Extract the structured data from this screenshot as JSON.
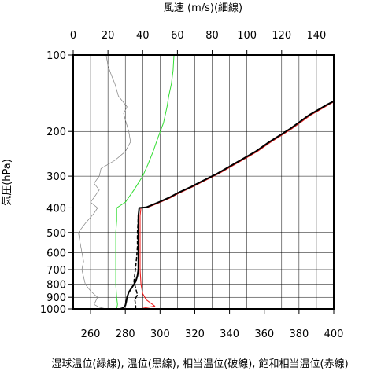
{
  "chart_data": {
    "type": "line",
    "title_top": "風速 (m/s)(細線)",
    "ylabel": "気圧(hPa)",
    "xlabel": "湿球温位(緑線), 温位(黒線), 相当温位(破線), 飽和相当温位(赤線)",
    "y_scale": "log",
    "y_reversed": true,
    "ylim": [
      1000,
      100
    ],
    "y_ticks": [
      100,
      200,
      300,
      400,
      500,
      600,
      700,
      800,
      900,
      1000
    ],
    "x_bottom_lim": [
      250,
      400
    ],
    "x_bottom_ticks": [
      260,
      280,
      300,
      320,
      340,
      360,
      380,
      400
    ],
    "x_top_lim": [
      0,
      150
    ],
    "x_top_ticks": [
      0,
      20,
      40,
      60,
      80,
      100,
      120,
      140
    ],
    "grid": true,
    "colors": {
      "wind": "#808080",
      "wet_bulb": "#33dd33",
      "theta": "#000000",
      "theta_e": "#000000",
      "theta_es": "#ee2222"
    },
    "series": [
      {
        "key": "wind",
        "axis": "top",
        "style": "thin",
        "points": [
          [
            19,
            1000
          ],
          [
            15,
            985
          ],
          [
            12,
            960
          ],
          [
            13,
            930
          ],
          [
            14,
            900
          ],
          [
            10,
            850
          ],
          [
            7,
            800
          ],
          [
            5,
            700
          ],
          [
            6,
            650
          ],
          [
            4,
            550
          ],
          [
            3,
            500
          ],
          [
            7,
            460
          ],
          [
            12,
            420
          ],
          [
            14,
            400
          ],
          [
            10,
            380
          ],
          [
            15,
            340
          ],
          [
            12,
            320
          ],
          [
            15,
            300
          ],
          [
            16,
            280
          ],
          [
            24,
            260
          ],
          [
            30,
            240
          ],
          [
            33,
            220
          ],
          [
            32,
            200
          ],
          [
            30,
            180
          ],
          [
            29,
            170
          ],
          [
            31,
            160
          ],
          [
            26,
            145
          ],
          [
            24,
            130
          ],
          [
            22,
            120
          ],
          [
            20,
            110
          ],
          [
            19,
            100
          ]
        ]
      },
      {
        "key": "wet_bulb",
        "axis": "bottom",
        "points": [
          [
            275,
            1000
          ],
          [
            275.5,
            960
          ],
          [
            275,
            900
          ],
          [
            274.5,
            800
          ],
          [
            274.5,
            700
          ],
          [
            274.5,
            600
          ],
          [
            274.5,
            500
          ],
          [
            275,
            450
          ],
          [
            275,
            400
          ],
          [
            280,
            380
          ],
          [
            285,
            340
          ],
          [
            290,
            300
          ],
          [
            293,
            270
          ],
          [
            296,
            240
          ],
          [
            299,
            210
          ],
          [
            302,
            185
          ],
          [
            304,
            160
          ],
          [
            305,
            145
          ],
          [
            306.5,
            130
          ],
          [
            307.5,
            115
          ],
          [
            308,
            100
          ]
        ]
      },
      {
        "key": "theta",
        "axis": "bottom",
        "points": [
          [
            277,
            1000
          ],
          [
            279,
            990
          ],
          [
            280,
            970
          ],
          [
            280.5,
            940
          ],
          [
            281,
            900
          ],
          [
            282,
            860
          ],
          [
            284,
            820
          ],
          [
            286,
            780
          ],
          [
            287,
            740
          ],
          [
            287.5,
            700
          ],
          [
            287.5,
            600
          ],
          [
            287.5,
            500
          ],
          [
            287.5,
            430
          ],
          [
            288,
            400
          ],
          [
            292,
            398
          ],
          [
            296,
            388
          ],
          [
            300,
            378
          ],
          [
            305,
            365
          ],
          [
            310,
            350
          ],
          [
            318,
            330
          ],
          [
            325,
            312
          ],
          [
            333,
            293
          ],
          [
            340,
            275
          ],
          [
            347,
            258
          ],
          [
            355,
            240
          ],
          [
            362,
            222
          ],
          [
            370,
            205
          ],
          [
            375,
            195
          ],
          [
            381,
            182
          ],
          [
            386,
            172
          ],
          [
            392,
            163
          ],
          [
            396,
            157
          ],
          [
            400,
            152
          ]
        ]
      },
      {
        "key": "theta_e",
        "axis": "bottom",
        "dashed": true,
        "points": [
          [
            286,
            1000
          ],
          [
            286,
            970
          ],
          [
            285.5,
            920
          ],
          [
            287,
            880
          ],
          [
            286,
            830
          ],
          [
            285,
            780
          ],
          [
            285.5,
            730
          ],
          [
            286,
            680
          ],
          [
            286.5,
            630
          ],
          [
            287,
            570
          ],
          [
            287,
            500
          ],
          [
            287.5,
            430
          ],
          [
            288,
            400
          ]
        ]
      },
      {
        "key": "theta_es",
        "axis": "bottom",
        "points": [
          [
            288,
            1000
          ],
          [
            297,
            975
          ],
          [
            292,
            920
          ],
          [
            290,
            870
          ],
          [
            289,
            800
          ],
          [
            288.5,
            700
          ],
          [
            288.5,
            600
          ],
          [
            288.5,
            500
          ],
          [
            288.5,
            430
          ],
          [
            289,
            400
          ],
          [
            293,
            398
          ],
          [
            297,
            388
          ],
          [
            301,
            378
          ],
          [
            306,
            365
          ],
          [
            311,
            350
          ],
          [
            319,
            330
          ],
          [
            326,
            312
          ],
          [
            334,
            293
          ],
          [
            341,
            275
          ],
          [
            348,
            258
          ],
          [
            356,
            240
          ],
          [
            363,
            222
          ],
          [
            371,
            205
          ],
          [
            376,
            195
          ],
          [
            382,
            182
          ],
          [
            387,
            172
          ],
          [
            393,
            163
          ],
          [
            397,
            157
          ],
          [
            400,
            153
          ]
        ]
      }
    ]
  }
}
